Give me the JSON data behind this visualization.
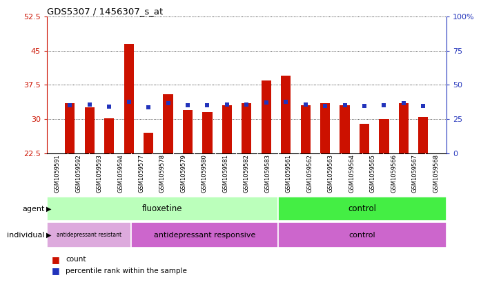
{
  "title": "GDS5307 / 1456307_s_at",
  "samples": [
    "GSM1059591",
    "GSM1059592",
    "GSM1059593",
    "GSM1059594",
    "GSM1059577",
    "GSM1059578",
    "GSM1059579",
    "GSM1059580",
    "GSM1059581",
    "GSM1059582",
    "GSM1059583",
    "GSM1059561",
    "GSM1059562",
    "GSM1059563",
    "GSM1059564",
    "GSM1059565",
    "GSM1059566",
    "GSM1059567",
    "GSM1059568"
  ],
  "counts": [
    33.5,
    32.5,
    30.2,
    46.5,
    27.0,
    35.5,
    32.0,
    31.5,
    33.0,
    33.5,
    38.5,
    39.5,
    33.0,
    33.5,
    33.0,
    29.0,
    30.0,
    33.5,
    30.5
  ],
  "percentiles": [
    35.0,
    35.5,
    34.0,
    37.5,
    33.5,
    36.5,
    35.0,
    35.0,
    35.5,
    35.5,
    37.0,
    37.5,
    35.5,
    34.5,
    35.0,
    34.5,
    35.0,
    36.5,
    34.5
  ],
  "ylim_left": [
    22.5,
    52.5
  ],
  "ylim_right": [
    0,
    100
  ],
  "yticks_left": [
    22.5,
    30.0,
    37.5,
    45.0,
    52.5
  ],
  "ytick_labels_left": [
    "22.5",
    "30",
    "37.5",
    "45",
    "52.5"
  ],
  "yticks_right": [
    0,
    25,
    50,
    75,
    100
  ],
  "ytick_labels_right": [
    "0",
    "25",
    "50",
    "75",
    "100%"
  ],
  "bar_color": "#cc1100",
  "dot_color": "#2233bb",
  "fluoxetine_color": "#bbffbb",
  "control_agent_color": "#44ee44",
  "antidepressant_resistant_color": "#ddaadd",
  "antidepressant_responsive_color": "#cc66cc",
  "control_individual_color": "#cc66cc",
  "xlabels_bg": "#c8c8c8",
  "xlabels_divider": "#ffffff",
  "baseline": 22.5,
  "flu_count": 11,
  "resist_count": 4,
  "responsive_count": 7,
  "control_count": 8
}
